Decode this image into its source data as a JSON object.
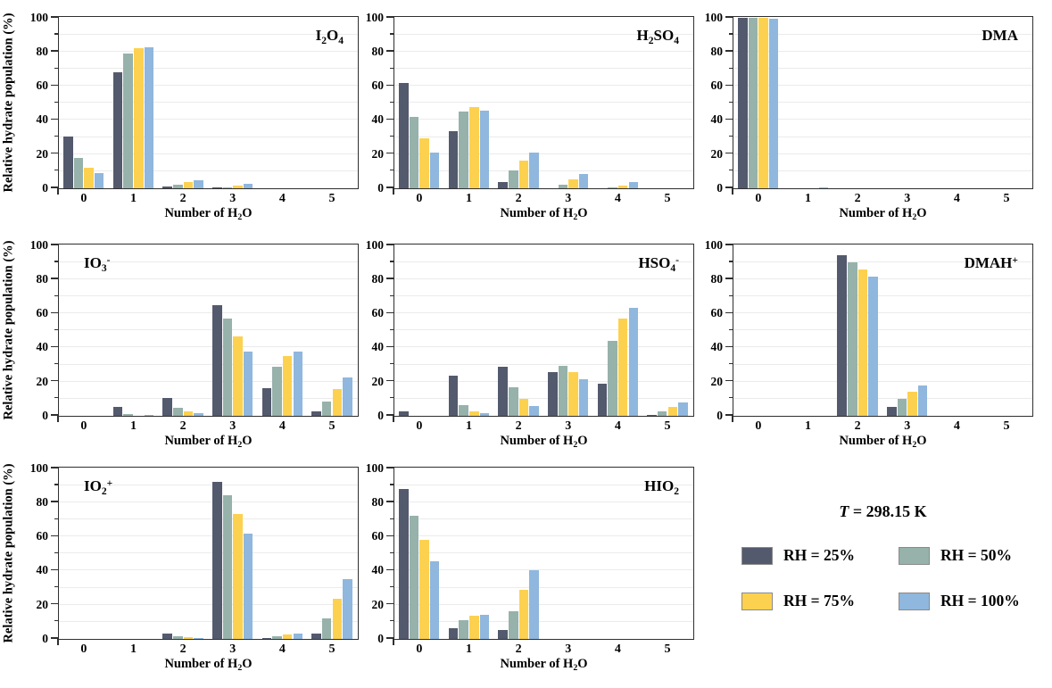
{
  "figure": {
    "ylabel": "Relative hydrate population (%)",
    "xlabel_segments": [
      {
        "t": "Number of H"
      },
      {
        "t": "2",
        "style": "sub"
      },
      {
        "t": "O"
      }
    ],
    "yticks": [
      0,
      20,
      40,
      60,
      80,
      100
    ],
    "ylim": [
      0,
      100
    ],
    "grid_step": 10,
    "background_color": "#ffffff",
    "axis_color": "#2f2f2f",
    "gridline_color": "#ebebeb"
  },
  "legend": {
    "temp_italic": "T",
    "temp_rest": " = 298.15 K",
    "items": [
      {
        "label": "RH = 25%",
        "color": "#545a6d"
      },
      {
        "label": "RH = 50%",
        "color": "#96b2aa"
      },
      {
        "label": "RH = 75%",
        "color": "#fdd150"
      },
      {
        "label": "RH = 100%",
        "color": "#90b7dd"
      }
    ]
  },
  "chart_data": [
    {
      "type": "bar",
      "title_segments": [
        {
          "t": "I"
        },
        {
          "t": "2",
          "style": "sub"
        },
        {
          "t": "O"
        },
        {
          "t": "4",
          "style": "sub"
        }
      ],
      "title_pos": "right",
      "categories": [
        "0",
        "1",
        "2",
        "3",
        "4",
        "5"
      ],
      "series": [
        {
          "name": "RH = 25%",
          "values": [
            30.5,
            68,
            1,
            0.5,
            0,
            0
          ]
        },
        {
          "name": "RH = 50%",
          "values": [
            18,
            79,
            2,
            0.5,
            0,
            0
          ]
        },
        {
          "name": "RH = 75%",
          "values": [
            12,
            82.5,
            3.5,
            1.5,
            0,
            0
          ]
        },
        {
          "name": "RH = 100%",
          "values": [
            9,
            83,
            4.5,
            2.5,
            0,
            0
          ]
        }
      ]
    },
    {
      "type": "bar",
      "title_segments": [
        {
          "t": "H"
        },
        {
          "t": "2",
          "style": "sub"
        },
        {
          "t": "SO"
        },
        {
          "t": "4",
          "style": "sub"
        }
      ],
      "title_pos": "right",
      "categories": [
        "0",
        "1",
        "2",
        "3",
        "4",
        "5"
      ],
      "series": [
        {
          "name": "RH = 25%",
          "values": [
            62,
            33.5,
            3.5,
            0,
            0,
            0
          ]
        },
        {
          "name": "RH = 50%",
          "values": [
            42,
            45,
            10.5,
            2,
            0.5,
            0
          ]
        },
        {
          "name": "RH = 75%",
          "values": [
            29.5,
            47.5,
            16,
            5,
            1.5,
            0
          ]
        },
        {
          "name": "RH = 100%",
          "values": [
            21,
            45.5,
            21,
            8.5,
            3.5,
            0
          ]
        }
      ]
    },
    {
      "type": "bar",
      "title_segments": [
        {
          "t": "DMA"
        }
      ],
      "title_pos": "right",
      "categories": [
        "0",
        "1",
        "2",
        "3",
        "4",
        "5"
      ],
      "series": [
        {
          "name": "RH = 25%",
          "values": [
            100,
            0,
            0,
            0,
            0,
            0
          ]
        },
        {
          "name": "RH = 50%",
          "values": [
            100,
            0,
            0,
            0,
            0,
            0
          ]
        },
        {
          "name": "RH = 75%",
          "values": [
            100,
            0,
            0,
            0,
            0,
            0
          ]
        },
        {
          "name": "RH = 100%",
          "values": [
            99.5,
            0.5,
            0,
            0,
            0,
            0
          ]
        }
      ]
    },
    {
      "type": "bar",
      "title_segments": [
        {
          "t": "IO"
        },
        {
          "t": "3",
          "style": "sub"
        },
        {
          "t": "-",
          "style": "sup"
        }
      ],
      "title_pos": "left",
      "categories": [
        "0",
        "1",
        "2",
        "3",
        "4",
        "5"
      ],
      "series": [
        {
          "name": "RH = 25%",
          "values": [
            0,
            5,
            10.5,
            65,
            16.5,
            2.5
          ]
        },
        {
          "name": "RH = 50%",
          "values": [
            0,
            1,
            4.5,
            57,
            29,
            8.5
          ]
        },
        {
          "name": "RH = 75%",
          "values": [
            0,
            0,
            2.5,
            46.5,
            35,
            15.5
          ]
        },
        {
          "name": "RH = 100%",
          "values": [
            0,
            0.5,
            1.5,
            38,
            38,
            22.5
          ]
        }
      ]
    },
    {
      "type": "bar",
      "title_segments": [
        {
          "t": "HSO"
        },
        {
          "t": "4",
          "style": "sub"
        },
        {
          "t": "-",
          "style": "sup"
        }
      ],
      "title_pos": "right",
      "categories": [
        "0",
        "1",
        "2",
        "3",
        "4",
        "5"
      ],
      "series": [
        {
          "name": "RH = 25%",
          "values": [
            2.5,
            23.5,
            29,
            25.5,
            19,
            0.5
          ]
        },
        {
          "name": "RH = 50%",
          "values": [
            0,
            6.5,
            17,
            29.5,
            44,
            2.5
          ]
        },
        {
          "name": "RH = 75%",
          "values": [
            0,
            2.5,
            10,
            25.5,
            57,
            5
          ]
        },
        {
          "name": "RH = 100%",
          "values": [
            0,
            1.5,
            6,
            21.5,
            63.5,
            8
          ]
        }
      ]
    },
    {
      "type": "bar",
      "title_segments": [
        {
          "t": "DMAH"
        },
        {
          "t": "+",
          "style": "sup"
        }
      ],
      "title_pos": "right",
      "categories": [
        "0",
        "1",
        "2",
        "3",
        "4",
        "5"
      ],
      "series": [
        {
          "name": "RH = 25%",
          "values": [
            0,
            0,
            94.5,
            5,
            0,
            0
          ]
        },
        {
          "name": "RH = 50%",
          "values": [
            0,
            0,
            90,
            10,
            0,
            0
          ]
        },
        {
          "name": "RH = 75%",
          "values": [
            0,
            0,
            86,
            14,
            0,
            0
          ]
        },
        {
          "name": "RH = 100%",
          "values": [
            0,
            0,
            82,
            18,
            0,
            0
          ]
        }
      ]
    },
    {
      "type": "bar",
      "title_segments": [
        {
          "t": "IO"
        },
        {
          "t": "2",
          "style": "sub"
        },
        {
          "t": "+",
          "style": "sup"
        }
      ],
      "title_pos": "left",
      "categories": [
        "0",
        "1",
        "2",
        "3",
        "4",
        "5"
      ],
      "series": [
        {
          "name": "RH = 25%",
          "values": [
            0,
            0,
            3,
            92.5,
            0.5,
            3
          ]
        },
        {
          "name": "RH = 50%",
          "values": [
            0,
            0,
            1.5,
            84.5,
            1.5,
            12
          ]
        },
        {
          "name": "RH = 75%",
          "values": [
            0,
            0,
            1,
            73.5,
            2.5,
            23.5
          ]
        },
        {
          "name": "RH = 100%",
          "values": [
            0,
            0,
            0.5,
            62,
            3,
            35
          ]
        }
      ]
    },
    {
      "type": "bar",
      "title_segments": [
        {
          "t": "HIO"
        },
        {
          "t": "2",
          "style": "sub"
        }
      ],
      "title_pos": "right",
      "categories": [
        "0",
        "1",
        "2",
        "3",
        "4",
        "5"
      ],
      "series": [
        {
          "name": "RH = 25%",
          "values": [
            88,
            6.5,
            5,
            0,
            0,
            0
          ]
        },
        {
          "name": "RH = 50%",
          "values": [
            72.5,
            11,
            16.5,
            0,
            0,
            0
          ]
        },
        {
          "name": "RH = 75%",
          "values": [
            58,
            13.5,
            29,
            0,
            0,
            0
          ]
        },
        {
          "name": "RH = 100%",
          "values": [
            45.5,
            14,
            40.5,
            0,
            0,
            0
          ]
        }
      ]
    }
  ]
}
